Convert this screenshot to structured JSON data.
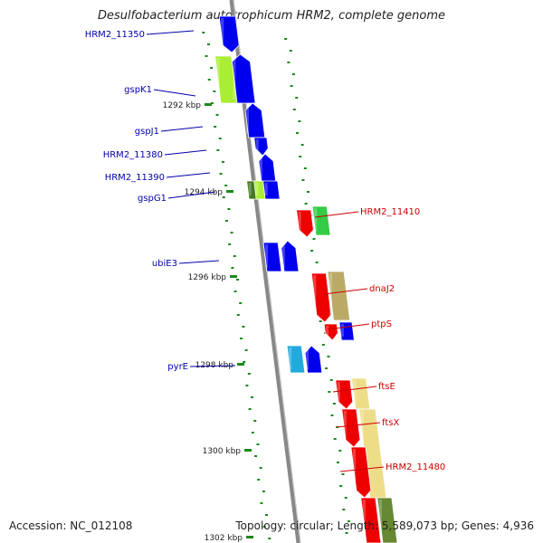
{
  "title": "Desulfobacterium autotrophicum HRM2, complete genome",
  "footer": {
    "accession": "Accession: NC_012108",
    "summary": "Topology: circular; Length: 5,589,073 bp; Genes: 4,936"
  },
  "colors": {
    "backbone": "#888888",
    "tick": "#1a8a1a",
    "forward_label": "#0000aa",
    "reverse_label": "#cc0000",
    "blue": "#0000ee",
    "red": "#ee0000",
    "lime": "#aaee33",
    "green": "#33cc44",
    "darkgreen": "#447722",
    "khaki": "#bbaa66",
    "cyan": "#22aadd",
    "paleyellow": "#eedd88",
    "olive": "#668833"
  },
  "kbp_ticks": [
    {
      "label": "1292 kbp"
    },
    {
      "label": "1294 kbp"
    },
    {
      "label": "1296 kbp"
    },
    {
      "label": "1298 kbp"
    },
    {
      "label": "1300 kbp"
    },
    {
      "label": "1302 kbp"
    }
  ],
  "gene_labels": [
    {
      "text": "HRM2_11350",
      "strand": "forward"
    },
    {
      "text": "gspK1",
      "strand": "forward"
    },
    {
      "text": "gspJ1",
      "strand": "forward"
    },
    {
      "text": "HRM2_11380",
      "strand": "forward"
    },
    {
      "text": "HRM2_11390",
      "strand": "forward"
    },
    {
      "text": "gspG1",
      "strand": "forward"
    },
    {
      "text": "ubiE3",
      "strand": "forward"
    },
    {
      "text": "pyrE",
      "strand": "forward"
    },
    {
      "text": "HRM2_11410",
      "strand": "reverse"
    },
    {
      "text": "dnaJ2",
      "strand": "reverse"
    },
    {
      "text": "ptpS",
      "strand": "reverse"
    },
    {
      "text": "ftsE",
      "strand": "reverse"
    },
    {
      "text": "ftsX",
      "strand": "reverse"
    },
    {
      "text": "HRM2_11480",
      "strand": "reverse"
    }
  ]
}
